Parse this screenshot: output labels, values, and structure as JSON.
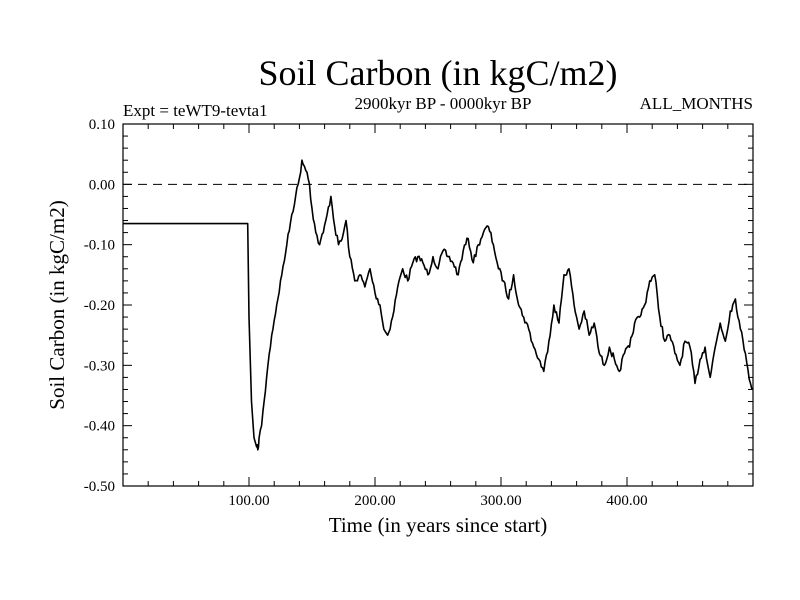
{
  "chart_data": {
    "type": "line",
    "title": "Soil Carbon (in kgC/m2)",
    "experiment": "Expt = teWT9-tevta1",
    "period": "2900kyr BP - 0000kyr BP",
    "months": "ALL_MONTHS",
    "xlabel": "Time (in years since start)",
    "ylabel": "Soil Carbon (in kgC/m2)",
    "xlim": [
      0,
      500
    ],
    "ylim": [
      -0.5,
      0.1
    ],
    "x_tick_values": [
      100,
      200,
      300,
      400
    ],
    "x_tick_labels": [
      "100.00",
      "200.00",
      "300.00",
      "400.00"
    ],
    "y_tick_values": [
      0.1,
      0.0,
      -0.1,
      -0.2,
      -0.3,
      -0.4,
      -0.5
    ],
    "y_tick_labels": [
      "0.10",
      "0.00",
      "-0.10",
      "-0.20",
      "-0.30",
      "-0.40",
      "-0.50"
    ],
    "reference_line": {
      "y": 0.0,
      "style": "dashed"
    },
    "series": [
      {
        "name": "Soil Carbon",
        "color": "#000000",
        "x": [
          0,
          99,
          100,
          102,
          104,
          106,
          107,
          108,
          110,
          112,
          115,
          118,
          122,
          126,
          130,
          134,
          137,
          140,
          142,
          144,
          146,
          148,
          150,
          153,
          156,
          159,
          162,
          165,
          168,
          171,
          174,
          177,
          180,
          184,
          188,
          192,
          196,
          200,
          204,
          207,
          210,
          214,
          218,
          222,
          226,
          230,
          234,
          238,
          242,
          246,
          250,
          254,
          258,
          262,
          266,
          270,
          274,
          278,
          282,
          286,
          290,
          294,
          298,
          302,
          306,
          310,
          314,
          318,
          322,
          326,
          330,
          334,
          338,
          342,
          346,
          350,
          354,
          358,
          362,
          366,
          370,
          374,
          378,
          382,
          386,
          390,
          394,
          398,
          402,
          406,
          410,
          414,
          418,
          422,
          426,
          430,
          434,
          438,
          442,
          446,
          450,
          454,
          458,
          462,
          466,
          470,
          474,
          478,
          482,
          486,
          490,
          494,
          498,
          500
        ],
        "y": [
          -0.065,
          -0.065,
          -0.22,
          -0.36,
          -0.42,
          -0.435,
          -0.44,
          -0.42,
          -0.4,
          -0.36,
          -0.3,
          -0.25,
          -0.2,
          -0.15,
          -0.1,
          -0.05,
          -0.02,
          0.01,
          0.04,
          0.03,
          0.02,
          0.0,
          -0.04,
          -0.08,
          -0.1,
          -0.08,
          -0.05,
          -0.02,
          -0.07,
          -0.1,
          -0.09,
          -0.06,
          -0.12,
          -0.16,
          -0.15,
          -0.17,
          -0.14,
          -0.18,
          -0.2,
          -0.24,
          -0.25,
          -0.22,
          -0.17,
          -0.14,
          -0.16,
          -0.13,
          -0.12,
          -0.13,
          -0.15,
          -0.12,
          -0.14,
          -0.11,
          -0.12,
          -0.13,
          -0.15,
          -0.11,
          -0.09,
          -0.13,
          -0.1,
          -0.08,
          -0.07,
          -0.1,
          -0.14,
          -0.16,
          -0.19,
          -0.15,
          -0.2,
          -0.22,
          -0.24,
          -0.27,
          -0.29,
          -0.31,
          -0.26,
          -0.2,
          -0.23,
          -0.15,
          -0.14,
          -0.2,
          -0.24,
          -0.21,
          -0.25,
          -0.23,
          -0.28,
          -0.3,
          -0.27,
          -0.29,
          -0.31,
          -0.28,
          -0.27,
          -0.23,
          -0.22,
          -0.2,
          -0.16,
          -0.15,
          -0.22,
          -0.26,
          -0.25,
          -0.28,
          -0.3,
          -0.26,
          -0.27,
          -0.33,
          -0.29,
          -0.27,
          -0.32,
          -0.27,
          -0.23,
          -0.26,
          -0.21,
          -0.19,
          -0.24,
          -0.28,
          -0.33,
          -0.34
        ]
      }
    ]
  }
}
